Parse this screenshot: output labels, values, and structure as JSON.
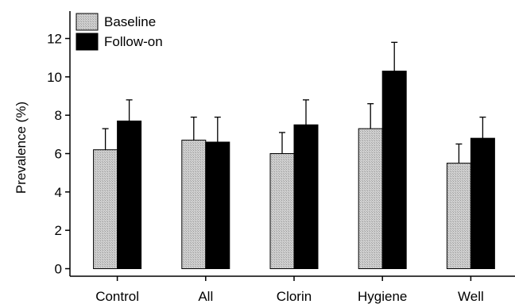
{
  "chart_data": {
    "type": "bar",
    "title": "",
    "xlabel": "",
    "ylabel": "Prevalence (%)",
    "ylim": [
      0,
      13
    ],
    "yticks": [
      0,
      2,
      4,
      6,
      8,
      10,
      12
    ],
    "grid": false,
    "legend_position": "top-left",
    "error_bars": true,
    "categories": [
      "Control",
      "All",
      "Clorin",
      "Hygiene",
      "Well"
    ],
    "series": [
      {
        "name": "Baseline",
        "color": "#c8c8c8",
        "values": [
          6.2,
          6.7,
          6.0,
          7.3,
          5.5
        ],
        "error_upper": [
          7.3,
          7.9,
          7.1,
          8.6,
          6.5
        ]
      },
      {
        "name": "Follow-on",
        "color": "#000000",
        "values": [
          7.7,
          6.6,
          7.5,
          10.3,
          6.8
        ],
        "error_upper": [
          8.8,
          7.9,
          8.8,
          11.8,
          7.9
        ]
      }
    ]
  }
}
